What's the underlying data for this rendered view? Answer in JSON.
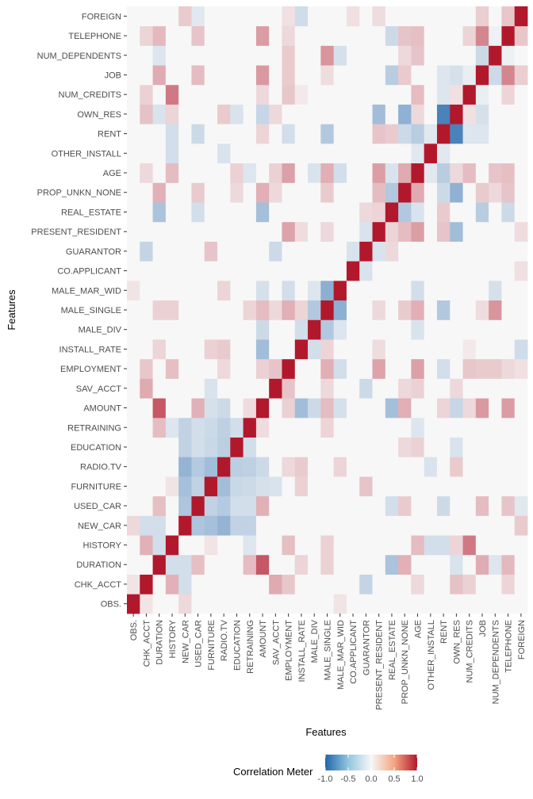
{
  "chart_data": {
    "type": "heatmap",
    "xlabel": "Features",
    "ylabel": "Features",
    "features": [
      "OBS.",
      "CHK_ACCT",
      "DURATION",
      "HISTORY",
      "NEW_CAR",
      "USED_CAR",
      "FURNITURE",
      "RADIO.TV",
      "EDUCATION",
      "RETRAINING",
      "AMOUNT",
      "SAV_ACCT",
      "EMPLOYMENT",
      "INSTALL_RATE",
      "MALE_DIV",
      "MALE_SINGLE",
      "MALE_MAR_WID",
      "CO.APPLICANT",
      "GUARANTOR",
      "PRESENT_RESIDENT",
      "REAL_ESTATE",
      "PROP_UNKN_NONE",
      "AGE",
      "OTHER_INSTALL",
      "RENT",
      "OWN_RES",
      "NUM_CREDITS",
      "JOB",
      "NUM_DEPENDENTS",
      "TELEPHONE",
      "FOREIGN"
    ],
    "legend": {
      "title": "Correlation Meter",
      "ticks": [
        -1.0,
        -0.5,
        0.0,
        0.5,
        1.0
      ],
      "tick_labels": [
        "-1.0",
        "-0.5",
        "0.0",
        "0.5",
        "1.0"
      ],
      "low_color": "#2166ac",
      "mid_color": "#f7f7f7",
      "high_color": "#b2182b"
    },
    "correlations": [
      {
        "a": "CHK_ACCT",
        "b": "SAV_ACCT",
        "r": 0.22
      },
      {
        "a": "CHK_ACCT",
        "b": "HISTORY",
        "r": 0.19
      },
      {
        "a": "CHK_ACCT",
        "b": "EMPLOYMENT",
        "r": 0.11
      },
      {
        "a": "CHK_ACCT",
        "b": "GUARANTOR",
        "r": -0.13
      },
      {
        "a": "CHK_ACCT",
        "b": "OWN_RES",
        "r": 0.13
      },
      {
        "a": "CHK_ACCT",
        "b": "NUM_CREDITS",
        "r": 0.08
      },
      {
        "a": "CHK_ACCT",
        "b": "AGE",
        "r": 0.06
      },
      {
        "a": "CHK_ACCT",
        "b": "TELEPHONE",
        "r": 0.07
      },
      {
        "a": "CHK_ACCT",
        "b": "OBS.",
        "r": 0.03
      },
      {
        "a": "DURATION",
        "b": "AMOUNT",
        "r": 0.62
      },
      {
        "a": "DURATION",
        "b": "HISTORY",
        "r": -0.08
      },
      {
        "a": "DURATION",
        "b": "REAL_ESTATE",
        "r": -0.23
      },
      {
        "a": "DURATION",
        "b": "PROP_UNKN_NONE",
        "r": 0.19
      },
      {
        "a": "DURATION",
        "b": "JOB",
        "r": 0.21
      },
      {
        "a": "DURATION",
        "b": "TELEPHONE",
        "r": 0.16
      },
      {
        "a": "DURATION",
        "b": "USED_CAR",
        "r": 0.14
      },
      {
        "a": "DURATION",
        "b": "NEW_CAR",
        "r": -0.08
      },
      {
        "a": "DURATION",
        "b": "RETRAINING",
        "r": 0.15
      },
      {
        "a": "DURATION",
        "b": "MALE_SINGLE",
        "r": 0.08
      },
      {
        "a": "DURATION",
        "b": "INSTALL_RATE",
        "r": 0.07
      },
      {
        "a": "DURATION",
        "b": "NUM_DEPENDENTS",
        "r": -0.05
      },
      {
        "a": "DURATION",
        "b": "OWN_RES",
        "r": -0.06
      },
      {
        "a": "HISTORY",
        "b": "NUM_CREDITS",
        "r": 0.44
      },
      {
        "a": "HISTORY",
        "b": "EMPLOYMENT",
        "r": 0.14
      },
      {
        "a": "HISTORY",
        "b": "AGE",
        "r": 0.15
      },
      {
        "a": "HISTORY",
        "b": "OTHER_INSTALL",
        "r": -0.08
      },
      {
        "a": "HISTORY",
        "b": "RENT",
        "r": -0.08
      },
      {
        "a": "HISTORY",
        "b": "MALE_SINGLE",
        "r": 0.08
      },
      {
        "a": "HISTORY",
        "b": "OWN_RES",
        "r": 0.07
      },
      {
        "a": "HISTORY",
        "b": "RETRAINING",
        "r": -0.05
      },
      {
        "a": "HISTORY",
        "b": "FURNITURE",
        "r": 0.03
      },
      {
        "a": "NEW_CAR",
        "b": "USED_CAR",
        "r": -0.22
      },
      {
        "a": "NEW_CAR",
        "b": "FURNITURE",
        "r": -0.25
      },
      {
        "a": "NEW_CAR",
        "b": "RADIO.TV",
        "r": -0.33
      },
      {
        "a": "NEW_CAR",
        "b": "EDUCATION",
        "r": -0.14
      },
      {
        "a": "NEW_CAR",
        "b": "RETRAINING",
        "r": -0.14
      },
      {
        "a": "NEW_CAR",
        "b": "DURATION",
        "r": -0.08
      },
      {
        "a": "NEW_CAR",
        "b": "CHK_ACCT",
        "r": -0.08
      },
      {
        "a": "NEW_CAR",
        "b": "OBS.",
        "r": 0.06
      },
      {
        "a": "USED_CAR",
        "b": "FURNITURE",
        "r": -0.14
      },
      {
        "a": "USED_CAR",
        "b": "RADIO.TV",
        "r": -0.19
      },
      {
        "a": "USED_CAR",
        "b": "EDUCATION",
        "r": -0.08
      },
      {
        "a": "USED_CAR",
        "b": "RETRAINING",
        "r": -0.08
      },
      {
        "a": "USED_CAR",
        "b": "AMOUNT",
        "r": 0.19
      },
      {
        "a": "USED_CAR",
        "b": "REAL_ESTATE",
        "r": -0.08
      },
      {
        "a": "USED_CAR",
        "b": "PROP_UNKN_NONE",
        "r": 0.1
      },
      {
        "a": "USED_CAR",
        "b": "RENT",
        "r": -0.1
      },
      {
        "a": "USED_CAR",
        "b": "JOB",
        "r": 0.15
      },
      {
        "a": "USED_CAR",
        "b": "TELEPHONE",
        "r": 0.12
      },
      {
        "a": "FURNITURE",
        "b": "RADIO.TV",
        "r": -0.27
      },
      {
        "a": "FURNITURE",
        "b": "EDUCATION",
        "r": -0.11
      },
      {
        "a": "FURNITURE",
        "b": "RETRAINING",
        "r": -0.1
      },
      {
        "a": "FURNITURE",
        "b": "SAV_ACCT",
        "r": -0.06
      },
      {
        "a": "FURNITURE",
        "b": "INSTALL_RATE",
        "r": 0.08
      },
      {
        "a": "FURNITURE",
        "b": "GUARANTOR",
        "r": 0.12
      },
      {
        "a": "FURNITURE",
        "b": "AMOUNT",
        "r": -0.07
      },
      {
        "a": "RADIO.TV",
        "b": "EDUCATION",
        "r": -0.16
      },
      {
        "a": "RADIO.TV",
        "b": "RETRAINING",
        "r": -0.15
      },
      {
        "a": "RADIO.TV",
        "b": "AMOUNT",
        "r": -0.1
      },
      {
        "a": "RADIO.TV",
        "b": "EMPLOYMENT",
        "r": 0.06
      },
      {
        "a": "RADIO.TV",
        "b": "INSTALL_RATE",
        "r": 0.1
      },
      {
        "a": "RADIO.TV",
        "b": "MALE_MAR_WID",
        "r": 0.07
      },
      {
        "a": "RADIO.TV",
        "b": "OWN_RES",
        "r": 0.1
      },
      {
        "a": "RADIO.TV",
        "b": "OTHER_INSTALL",
        "r": -0.06
      },
      {
        "a": "EDUCATION",
        "b": "RETRAINING",
        "r": -0.08
      },
      {
        "a": "EDUCATION",
        "b": "AGE",
        "r": 0.08
      },
      {
        "a": "EDUCATION",
        "b": "PROP_UNKN_NONE",
        "r": 0.06
      },
      {
        "a": "EDUCATION",
        "b": "OWN_RES",
        "r": -0.06
      },
      {
        "a": "RETRAINING",
        "b": "AMOUNT",
        "r": 0.05
      },
      {
        "a": "RETRAINING",
        "b": "AGE",
        "r": -0.05
      },
      {
        "a": "RETRAINING",
        "b": "MALE_SINGLE",
        "r": 0.07
      },
      {
        "a": "AMOUNT",
        "b": "INSTALL_RATE",
        "r": -0.27
      },
      {
        "a": "AMOUNT",
        "b": "REAL_ESTATE",
        "r": -0.26
      },
      {
        "a": "AMOUNT",
        "b": "PROP_UNKN_NONE",
        "r": 0.2
      },
      {
        "a": "AMOUNT",
        "b": "JOB",
        "r": 0.29
      },
      {
        "a": "AMOUNT",
        "b": "TELEPHONE",
        "r": 0.28
      },
      {
        "a": "AMOUNT",
        "b": "MALE_SINGLE",
        "r": 0.15
      },
      {
        "a": "AMOUNT",
        "b": "MALE_DIV",
        "r": -0.1
      },
      {
        "a": "AMOUNT",
        "b": "MALE_MAR_WID",
        "r": -0.07
      },
      {
        "a": "AMOUNT",
        "b": "EMPLOYMENT",
        "r": 0.08
      },
      {
        "a": "AMOUNT",
        "b": "RENT",
        "r": 0.07
      },
      {
        "a": "AMOUNT",
        "b": "OWN_RES",
        "r": -0.12
      },
      {
        "a": "AMOUNT",
        "b": "NUM_CREDITS",
        "r": 0.06
      },
      {
        "a": "SAV_ACCT",
        "b": "EMPLOYMENT",
        "r": 0.12
      },
      {
        "a": "SAV_ACCT",
        "b": "MALE_SINGLE",
        "r": 0.06
      },
      {
        "a": "SAV_ACCT",
        "b": "GUARANTOR",
        "r": -0.1
      },
      {
        "a": "SAV_ACCT",
        "b": "PROP_UNKN_NONE",
        "r": 0.06
      },
      {
        "a": "SAV_ACCT",
        "b": "AGE",
        "r": 0.08
      },
      {
        "a": "SAV_ACCT",
        "b": "OWN_RES",
        "r": 0.06
      },
      {
        "a": "EMPLOYMENT",
        "b": "AGE",
        "r": 0.26
      },
      {
        "a": "EMPLOYMENT",
        "b": "PRESENT_RESIDENT",
        "r": 0.25
      },
      {
        "a": "EMPLOYMENT",
        "b": "MALE_SINGLE",
        "r": 0.2
      },
      {
        "a": "EMPLOYMENT",
        "b": "MALE_MAR_WID",
        "r": -0.08
      },
      {
        "a": "EMPLOYMENT",
        "b": "NUM_CREDITS",
        "r": 0.11
      },
      {
        "a": "EMPLOYMENT",
        "b": "JOB",
        "r": 0.1
      },
      {
        "a": "EMPLOYMENT",
        "b": "NUM_DEPENDENTS",
        "r": 0.1
      },
      {
        "a": "EMPLOYMENT",
        "b": "TELEPHONE",
        "r": 0.06
      },
      {
        "a": "EMPLOYMENT",
        "b": "RENT",
        "r": -0.08
      },
      {
        "a": "INSTALL_RATE",
        "b": "MALE_DIV",
        "r": -0.08
      },
      {
        "a": "INSTALL_RATE",
        "b": "MALE_SINGLE",
        "r": 0.07
      },
      {
        "a": "INSTALL_RATE",
        "b": "PRESENT_RESIDENT",
        "r": 0.05
      },
      {
        "a": "INSTALL_RATE",
        "b": "NUM_CREDITS",
        "r": 0.02
      },
      {
        "a": "INSTALL_RATE",
        "b": "FOREIGN",
        "r": -0.09
      },
      {
        "a": "MALE_DIV",
        "b": "MALE_SINGLE",
        "r": -0.2
      },
      {
        "a": "MALE_DIV",
        "b": "MALE_MAR_WID",
        "r": -0.05
      },
      {
        "a": "MALE_DIV",
        "b": "AGE",
        "r": -0.06
      },
      {
        "a": "MALE_SINGLE",
        "b": "MALE_MAR_WID",
        "r": -0.37
      },
      {
        "a": "MALE_SINGLE",
        "b": "PROP_UNKN_NONE",
        "r": 0.1
      },
      {
        "a": "MALE_SINGLE",
        "b": "AGE",
        "r": 0.2
      },
      {
        "a": "MALE_SINGLE",
        "b": "RENT",
        "r": -0.2
      },
      {
        "a": "MALE_SINGLE",
        "b": "NUM_DEPENDENTS",
        "r": 0.31
      },
      {
        "a": "MALE_SINGLE",
        "b": "JOB",
        "r": 0.05
      },
      {
        "a": "MALE_SINGLE",
        "b": "PRESENT_RESIDENT",
        "r": 0.06
      },
      {
        "a": "MALE_MAR_WID",
        "b": "AGE",
        "r": -0.08
      },
      {
        "a": "MALE_MAR_WID",
        "b": "NUM_DEPENDENTS",
        "r": -0.07
      },
      {
        "a": "MALE_MAR_WID",
        "b": "OBS.",
        "r": 0.03
      },
      {
        "a": "CO.APPLICANT",
        "b": "GUARANTOR",
        "r": -0.06
      },
      {
        "a": "CO.APPLICANT",
        "b": "FOREIGN",
        "r": 0.04
      },
      {
        "a": "GUARANTOR",
        "b": "PRESENT_RESIDENT",
        "r": -0.06
      },
      {
        "a": "GUARANTOR",
        "b": "REAL_ESTATE",
        "r": 0.06
      },
      {
        "a": "PRESENT_RESIDENT",
        "b": "AGE",
        "r": 0.27
      },
      {
        "a": "PRESENT_RESIDENT",
        "b": "OWN_RES",
        "r": -0.27
      },
      {
        "a": "PRESENT_RESIDENT",
        "b": "PROP_UNKN_NONE",
        "r": 0.15
      },
      {
        "a": "PRESENT_RESIDENT",
        "b": "RENT",
        "r": 0.12
      },
      {
        "a": "PRESENT_RESIDENT",
        "b": "REAL_ESTATE",
        "r": 0.07
      },
      {
        "a": "PRESENT_RESIDENT",
        "b": "FOREIGN",
        "r": 0.05
      },
      {
        "a": "REAL_ESTATE",
        "b": "PROP_UNKN_NONE",
        "r": -0.2
      },
      {
        "a": "REAL_ESTATE",
        "b": "AGE",
        "r": -0.06
      },
      {
        "a": "REAL_ESTATE",
        "b": "RENT",
        "r": 0.1
      },
      {
        "a": "REAL_ESTATE",
        "b": "JOB",
        "r": -0.17
      },
      {
        "a": "REAL_ESTATE",
        "b": "TELEPHONE",
        "r": -0.1
      },
      {
        "a": "PROP_UNKN_NONE",
        "b": "AGE",
        "r": 0.22
      },
      {
        "a": "PROP_UNKN_NONE",
        "b": "OWN_RES",
        "r": -0.35
      },
      {
        "a": "PROP_UNKN_NONE",
        "b": "RENT",
        "r": -0.1
      },
      {
        "a": "PROP_UNKN_NONE",
        "b": "JOB",
        "r": 0.1
      },
      {
        "a": "PROP_UNKN_NONE",
        "b": "TELEPHONE",
        "r": 0.12
      },
      {
        "a": "PROP_UNKN_NONE",
        "b": "NUM_DEPENDENTS",
        "r": 0.06
      },
      {
        "a": "AGE",
        "b": "RENT",
        "r": -0.17
      },
      {
        "a": "AGE",
        "b": "OWN_RES",
        "r": 0.06
      },
      {
        "a": "AGE",
        "b": "NUM_CREDITS",
        "r": 0.15
      },
      {
        "a": "AGE",
        "b": "NUM_DEPENDENTS",
        "r": 0.12
      },
      {
        "a": "AGE",
        "b": "TELEPHONE",
        "r": 0.14
      },
      {
        "a": "AGE",
        "b": "OTHER_INSTALL",
        "r": -0.04
      },
      {
        "a": "OTHER_INSTALL",
        "b": "RENT",
        "r": -0.04
      },
      {
        "a": "RENT",
        "b": "OWN_RES",
        "r": -0.74
      },
      {
        "a": "RENT",
        "b": "NUM_CREDITS",
        "r": -0.05
      },
      {
        "a": "RENT",
        "b": "JOB",
        "r": -0.05
      },
      {
        "a": "OWN_RES",
        "b": "NUM_CREDITS",
        "r": 0.04
      },
      {
        "a": "OWN_RES",
        "b": "JOB",
        "r": -0.07
      },
      {
        "a": "NUM_CREDITS",
        "b": "JOB",
        "r": -0.02
      },
      {
        "a": "NUM_CREDITS",
        "b": "TELEPHONE",
        "r": 0.07
      },
      {
        "a": "JOB",
        "b": "NUM_DEPENDENTS",
        "r": -0.1
      },
      {
        "a": "JOB",
        "b": "TELEPHONE",
        "r": 0.38
      },
      {
        "a": "NUM_DEPENDENTS",
        "b": "TELEPHONE",
        "r": -0.01
      },
      {
        "a": "TELEPHONE",
        "b": "FOREIGN",
        "r": 0.11
      },
      {
        "a": "FOREIGN",
        "b": "NEW_CAR",
        "r": 0.1
      },
      {
        "a": "FOREIGN",
        "b": "JOB",
        "r": 0.09
      },
      {
        "a": "FOREIGN",
        "b": "PRESENT_RESIDENT",
        "r": 0.05
      },
      {
        "a": "FOREIGN",
        "b": "USED_CAR",
        "r": -0.04
      },
      {
        "a": "FOREIGN",
        "b": "EMPLOYMENT",
        "r": 0.04
      }
    ]
  }
}
